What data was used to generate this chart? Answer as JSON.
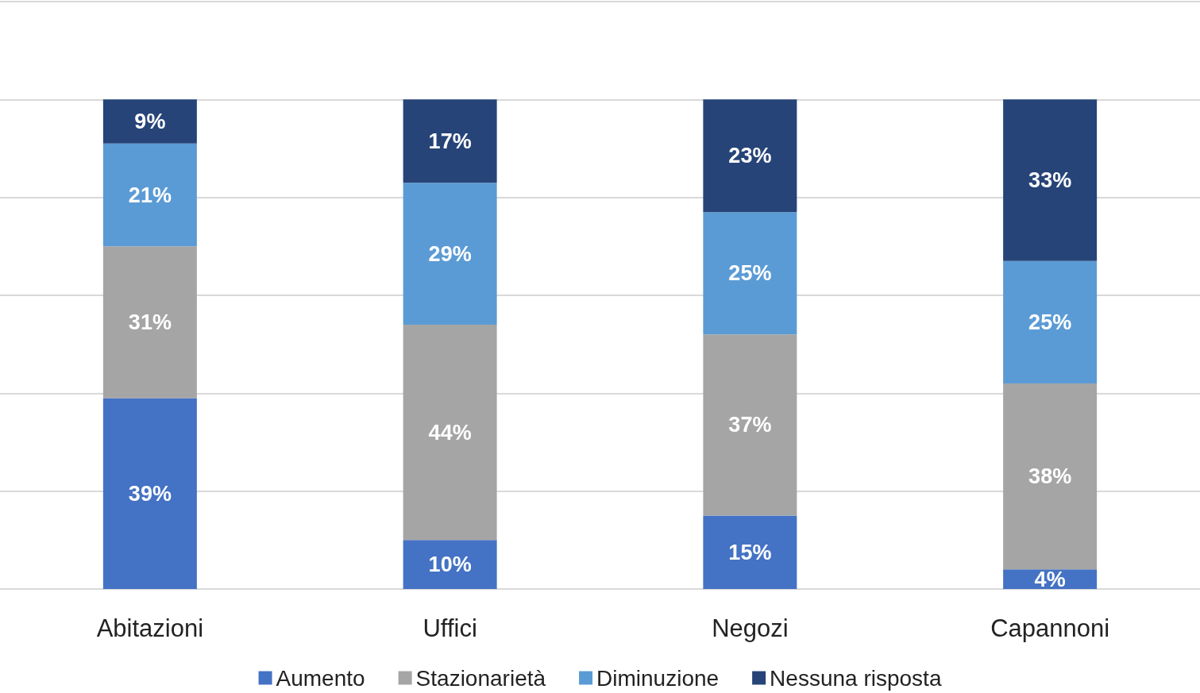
{
  "chart_data": {
    "type": "bar",
    "stacked": true,
    "categories": [
      "Abitazioni",
      "Uffici",
      "Negozi",
      "Capannoni"
    ],
    "series": [
      {
        "name": "Aumento",
        "color": "#4472c4",
        "values": [
          39,
          10,
          15,
          4
        ],
        "value_labels": [
          "39%",
          "10%",
          "15%",
          "4%"
        ]
      },
      {
        "name": "Stazionarietà",
        "color": "#a5a5a5",
        "values": [
          31,
          44,
          37,
          38
        ],
        "value_labels": [
          "31%",
          "44%",
          "37%",
          "38%"
        ]
      },
      {
        "name": "Diminuzione",
        "color": "#5b9bd5",
        "values": [
          21,
          29,
          25,
          25
        ],
        "value_labels": [
          "21%",
          "29%",
          "25%",
          "25%"
        ]
      },
      {
        "name": "Nessuna risposta",
        "color": "#264478",
        "values": [
          9,
          17,
          23,
          33
        ],
        "value_labels": [
          "9%",
          "17%",
          "23%",
          "33%"
        ]
      }
    ],
    "ylim": [
      0,
      120
    ],
    "yticks": [
      {
        "value": 0,
        "label": null
      },
      {
        "value": 20,
        "label": null
      },
      {
        "value": 40,
        "label": null
      },
      {
        "value": 60,
        "label": null
      },
      {
        "value": 80,
        "label": null
      },
      {
        "value": 100,
        "label": null
      },
      {
        "value": 120,
        "label": null
      }
    ],
    "grid": "y",
    "legend": "bottom",
    "tick_labels": "x"
  }
}
